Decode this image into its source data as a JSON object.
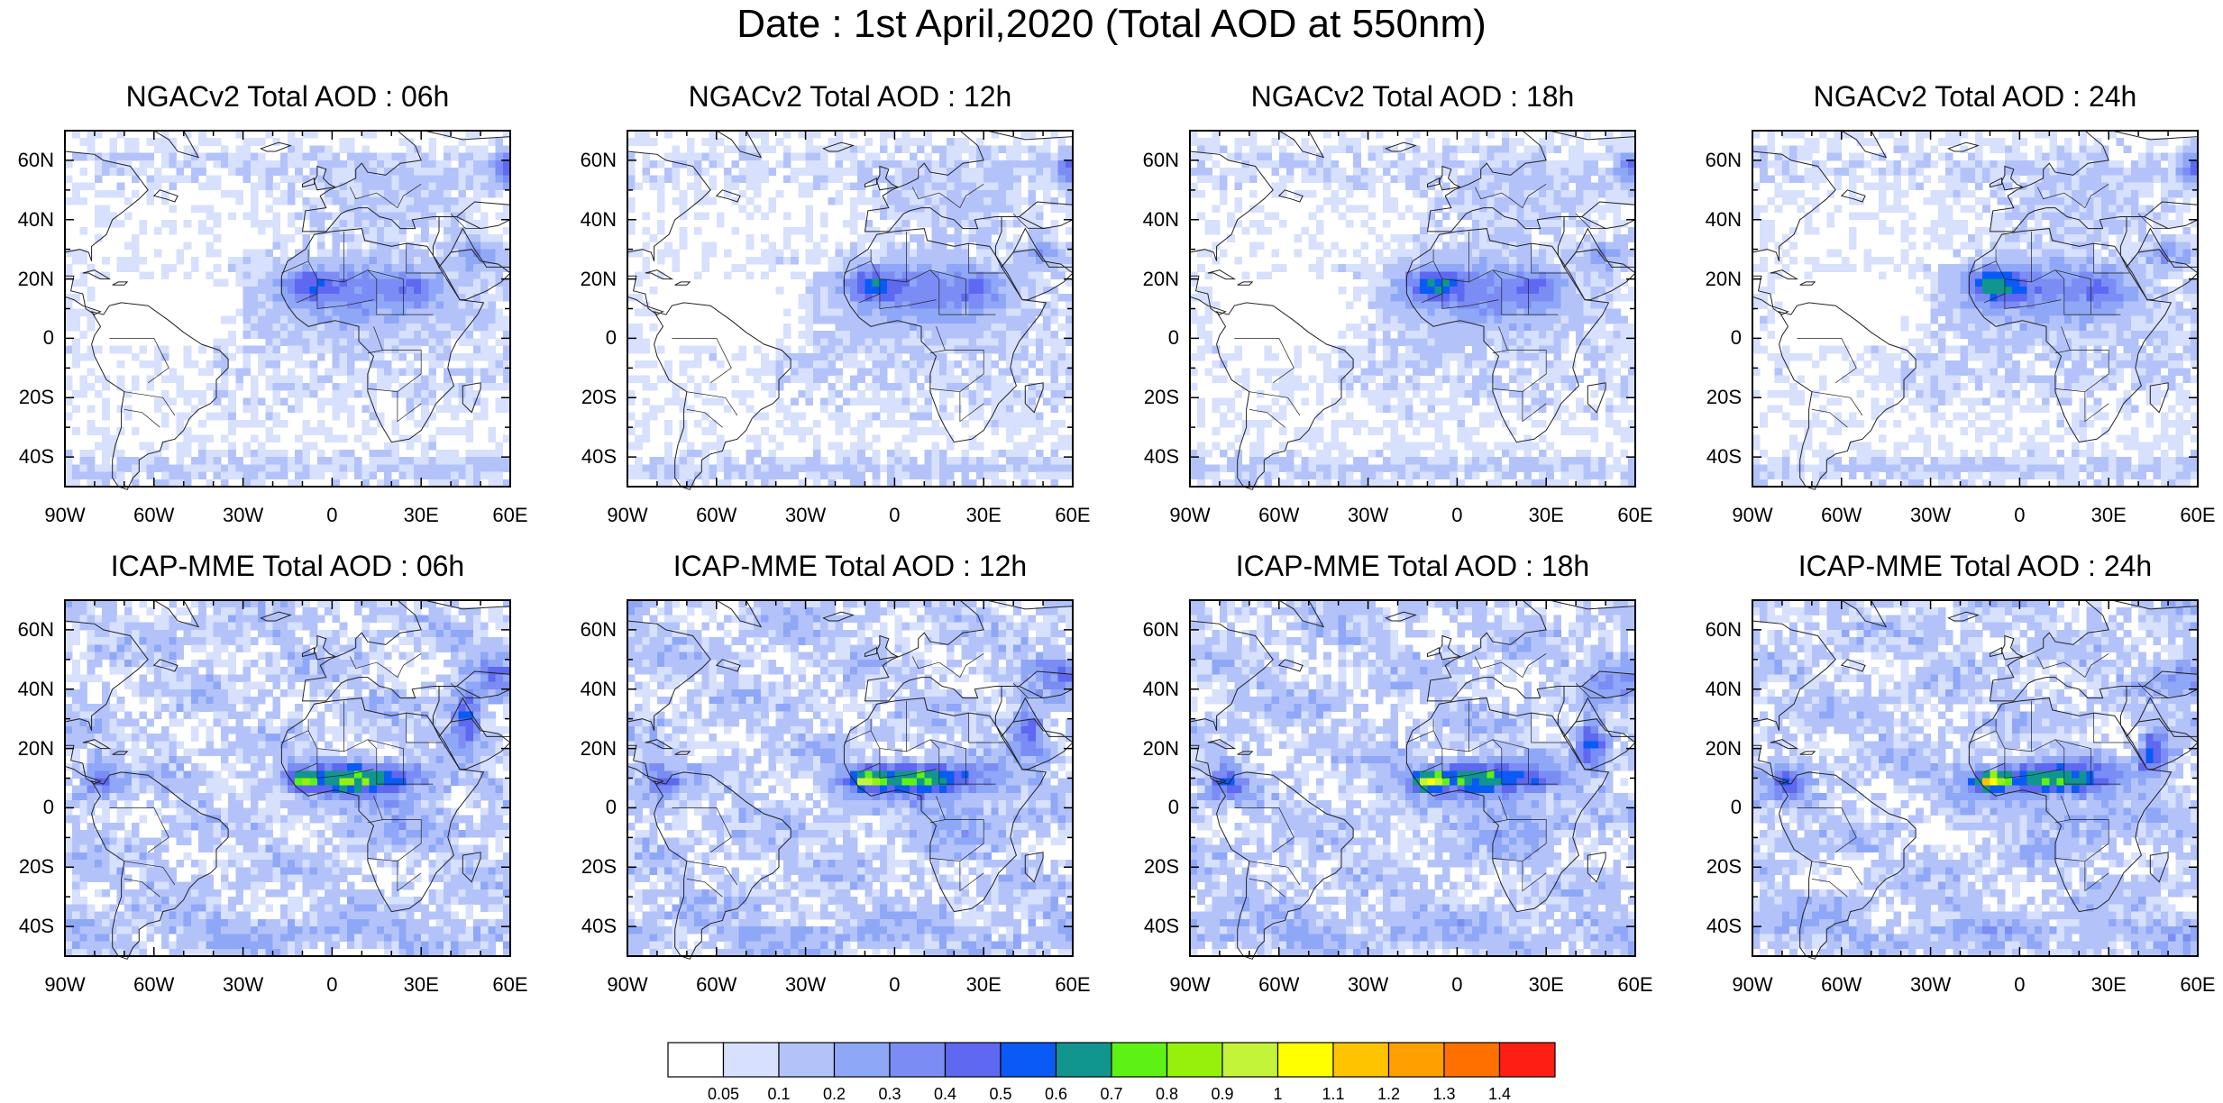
{
  "title": "Date : 1st April,2020 (Total AOD at 550nm)",
  "panels": [
    {
      "title": "NGACv2 Total AOD : 06h",
      "model": "NGACv2",
      "lead": "06h"
    },
    {
      "title": "NGACv2 Total AOD : 12h",
      "model": "NGACv2",
      "lead": "12h"
    },
    {
      "title": "NGACv2 Total AOD : 18h",
      "model": "NGACv2",
      "lead": "18h"
    },
    {
      "title": "NGACv2 Total AOD : 24h",
      "model": "NGACv2",
      "lead": "24h"
    },
    {
      "title": "ICAP-MME Total AOD : 06h",
      "model": "ICAP-MME",
      "lead": "06h"
    },
    {
      "title": "ICAP-MME Total AOD : 12h",
      "model": "ICAP-MME",
      "lead": "12h"
    },
    {
      "title": "ICAP-MME Total AOD : 18h",
      "model": "ICAP-MME",
      "lead": "18h"
    },
    {
      "title": "ICAP-MME Total AOD : 24h",
      "model": "ICAP-MME",
      "lead": "24h"
    }
  ],
  "lat_labels": [
    "60N",
    "40N",
    "20N",
    "0",
    "20S",
    "40S"
  ],
  "lat_values": [
    60,
    40,
    20,
    0,
    -20,
    -40
  ],
  "lon_labels": [
    "90W",
    "60W",
    "30W",
    "0",
    "30E",
    "60E"
  ],
  "lon_values": [
    -90,
    -60,
    -30,
    0,
    30,
    60
  ],
  "extent": {
    "lon": [
      -90,
      60
    ],
    "lat": [
      -50,
      70
    ]
  },
  "colorbar": {
    "colors": [
      "#ffffff",
      "#d7e0fc",
      "#b3c3fa",
      "#8fa7f7",
      "#7b8cf4",
      "#5e68f0",
      "#0a5af5",
      "#11958f",
      "#5ef214",
      "#97f00c",
      "#c4f43a",
      "#ffff00",
      "#ffc400",
      "#ff9f00",
      "#ff7000",
      "#ff1e14"
    ],
    "labels": [
      "0.05",
      "0.1",
      "0.2",
      "0.3",
      "0.4",
      "0.5",
      "0.6",
      "0.7",
      "0.8",
      "0.9",
      "1",
      "1.1",
      "1.2",
      "1.3",
      "1.4"
    ]
  }
}
